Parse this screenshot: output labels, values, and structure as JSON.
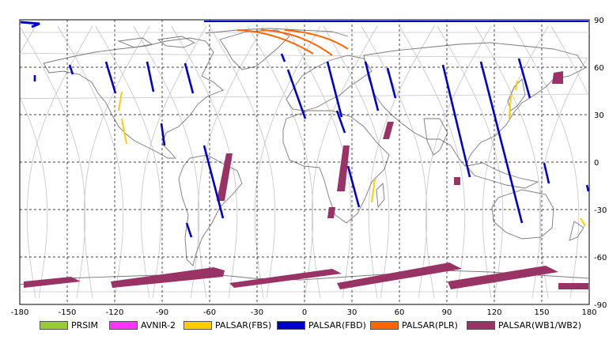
{
  "map": {
    "lon_range": [
      -180,
      180
    ],
    "lat_range": [
      -90,
      90
    ],
    "x_ticks": [
      "-180",
      "-150",
      "-120",
      "-90",
      "-60",
      "-30",
      "0",
      "30",
      "60",
      "90",
      "120",
      "150",
      "180"
    ],
    "y_ticks": [
      "90",
      "60",
      "30",
      "0",
      "-30",
      "-60",
      "-90"
    ],
    "grid": "dashed",
    "background_orbits": "light-gray",
    "coastline_color": "#7a7a7a"
  },
  "legend": {
    "items": [
      {
        "label": "PRSIM",
        "color": "#99cc33"
      },
      {
        "label": "AVNIR-2",
        "color": "#ff33ff"
      },
      {
        "label": "PALSAR(FBS)",
        "color": "#ffcc00"
      },
      {
        "label": "PALSAR(FBD)",
        "color": "#0000cc"
      },
      {
        "label": "PALSAR(PLR)",
        "color": "#ff6600"
      },
      {
        "label": "PALSAR(WB1/WB2)",
        "color": "#993366"
      }
    ]
  }
}
